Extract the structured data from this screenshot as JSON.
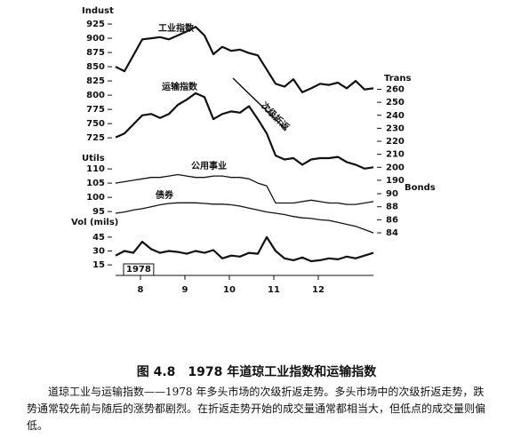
{
  "chart_data": [
    {
      "type": "line",
      "ylabel": "Indust",
      "y2label": "Trans",
      "annotations": [
        "工业指数",
        "运输指数",
        "次级折返"
      ],
      "x": [
        7.44,
        7.64,
        7.84,
        8.04,
        8.24,
        8.44,
        8.64,
        8.84,
        9.04,
        9.24,
        9.44,
        9.64,
        9.84,
        10.04,
        10.24,
        10.44,
        10.64,
        10.84,
        11.04,
        11.24,
        11.44,
        11.64,
        11.84,
        12.04,
        12.24,
        12.44,
        12.64,
        12.84,
        13.04,
        13.24
      ],
      "xlim": [
        7.44,
        13.24
      ],
      "ylim": [
        655,
        936
      ],
      "yticks": [
        725,
        750,
        775,
        800,
        825,
        850,
        875,
        900,
        925
      ],
      "y2lim": [
        192,
        315
      ],
      "y2ticks": [
        190,
        200,
        210,
        220,
        230,
        240,
        250,
        260
      ],
      "series": [
        {
          "name": "Indust",
          "color": "#111111",
          "values": [
            850,
            842,
            870,
            898,
            900,
            902,
            898,
            905,
            912,
            920,
            905,
            872,
            885,
            878,
            880,
            874,
            870,
            845,
            820,
            815,
            828,
            805,
            812,
            820,
            818,
            822,
            812,
            825,
            810,
            812
          ]
        },
        {
          "name": "Trans",
          "color": "#111111",
          "axis": "y2",
          "values": [
            223,
            226,
            233,
            240,
            241,
            238,
            241,
            248,
            252,
            257,
            254,
            237,
            241,
            243,
            242,
            247,
            237,
            226,
            209,
            206,
            207,
            202,
            206,
            207,
            207,
            208,
            204,
            202,
            199,
            200
          ]
        }
      ]
    },
    {
      "type": "line",
      "ylabel": "Utils",
      "y2label": "Bonds",
      "annotations": [
        "公用事业",
        "债券"
      ],
      "x": [
        7.44,
        7.64,
        7.84,
        8.04,
        8.24,
        8.44,
        8.64,
        8.84,
        9.04,
        9.24,
        9.44,
        9.64,
        9.84,
        10.04,
        10.24,
        10.44,
        10.64,
        10.84,
        11.04,
        11.24,
        11.44,
        11.64,
        11.84,
        12.04,
        12.24,
        12.44,
        12.64,
        12.84,
        13.04,
        13.24
      ],
      "xlim": [
        7.44,
        13.24
      ],
      "ylim": [
        86.6,
        111.6
      ],
      "yticks": [
        95,
        100,
        105,
        110
      ],
      "y2lim": [
        83.6,
        94.5
      ],
      "y2ticks": [
        84,
        86,
        88,
        90
      ],
      "series": [
        {
          "name": "Utils",
          "color": "#111111",
          "values": [
            105,
            105.5,
            106,
            106.5,
            107,
            107,
            107.5,
            108,
            107.5,
            107,
            107,
            107.5,
            107.5,
            107,
            107,
            106.5,
            105,
            104,
            98,
            98,
            98,
            98.5,
            99,
            98.5,
            98,
            98,
            97.5,
            97.5,
            98,
            98.5
          ]
        },
        {
          "name": "Bonds",
          "color": "#111111",
          "axis": "y2",
          "values": [
            87,
            87.2,
            87.5,
            87.7,
            88,
            88.3,
            88.5,
            88.6,
            88.6,
            88.6,
            88.5,
            88.4,
            88.4,
            88.3,
            88.1,
            87.8,
            87.5,
            87.2,
            87,
            86.8,
            86.5,
            86.3,
            86.2,
            86,
            85.9,
            85.6,
            85.3,
            85,
            84.5,
            84
          ]
        }
      ]
    },
    {
      "type": "line",
      "ylabel": "Vol (mils)",
      "annotations": [
        "1978"
      ],
      "x": [
        7.44,
        7.64,
        7.84,
        8.04,
        8.24,
        8.44,
        8.64,
        8.84,
        9.04,
        9.24,
        9.44,
        9.64,
        9.84,
        10.04,
        10.24,
        10.44,
        10.64,
        10.84,
        11.04,
        11.24,
        11.44,
        11.64,
        11.84,
        12.04,
        12.24,
        12.44,
        12.64,
        12.84,
        13.04,
        13.24
      ],
      "xlim": [
        7.44,
        13.24
      ],
      "xticks": [
        8,
        9,
        10,
        11,
        12
      ],
      "ylim": [
        8.4,
        49.7
      ],
      "yticks": [
        15,
        30,
        45
      ],
      "series": [
        {
          "name": "Vol",
          "color": "#111111",
          "values": [
            25,
            30,
            28,
            40,
            32,
            28,
            30,
            29,
            27,
            30,
            28,
            31,
            22,
            25,
            24,
            28,
            27,
            45,
            30,
            22,
            20,
            23,
            19,
            20,
            22,
            21,
            24,
            22,
            25,
            28
          ]
        }
      ]
    }
  ],
  "caption": {
    "title": "图 4.8　1978 年道琼工业指数和运输指数",
    "text": "道琼工业与运输指数——1978 年多头市场的次级折返走势。多头市场中的次级折返走势，跌势通常较先前与随后的涨势都剧烈。在折返走势开始的成交量通常都相当大，但低点的成交量则偏低。"
  }
}
